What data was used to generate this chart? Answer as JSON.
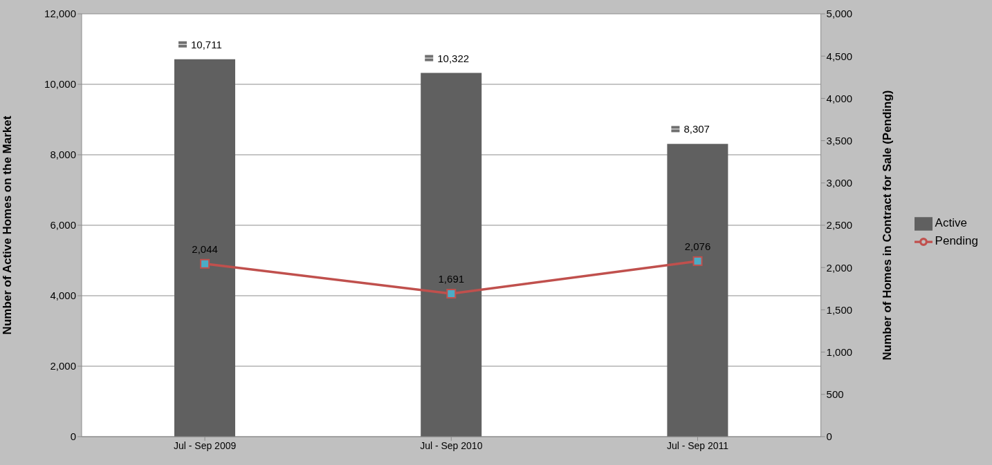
{
  "chart_data": {
    "type": "bar",
    "categories": [
      "Jul - Sep 2009",
      "Jul - Sep 2010",
      "Jul - Sep 2011"
    ],
    "ylabel": "Number of Active Homes on the Market",
    "y2label": "Number of Homes in Contract for Sale (Pending)",
    "series": [
      {
        "name": "Active",
        "color": "#606060",
        "values": [
          10711,
          10322,
          8307
        ],
        "value_labels": [
          "10,711",
          "10,322",
          "8,307"
        ]
      },
      {
        "name": "Pending",
        "type": "line",
        "axis": "y2",
        "color": "#c0504d",
        "values": [
          2044,
          1691,
          2076
        ],
        "value_labels": [
          "2,044",
          "1,691",
          "2,076"
        ]
      }
    ],
    "ylim": [
      0,
      12000
    ],
    "yticks": [
      0,
      {
        "value": 2000,
        "label": "2,000"
      },
      {
        "value": 4000,
        "label": "4,000"
      },
      {
        "value": 6000,
        "label": "6,000"
      },
      {
        "value": 8000,
        "label": "8,000"
      },
      {
        "value": 10000,
        "label": "10,000"
      },
      {
        "value": 12000,
        "label": "12,000"
      }
    ],
    "y2lim": [
      0,
      5000
    ],
    "y2ticks": [
      0,
      500,
      {
        "value": 1000,
        "label": "1,000"
      },
      {
        "value": 1500,
        "label": "1,500"
      },
      {
        "value": 2000,
        "label": "2,000"
      },
      {
        "value": 2500,
        "label": "2,500"
      },
      {
        "value": 3000,
        "label": "3,000"
      },
      {
        "value": 3500,
        "label": "3,500"
      },
      {
        "value": 4000,
        "label": "4,000"
      },
      {
        "value": 4500,
        "label": "4,500"
      },
      {
        "value": 5000,
        "label": "5,000"
      }
    ],
    "grid": "y",
    "legend": "right",
    "marker": "square"
  }
}
